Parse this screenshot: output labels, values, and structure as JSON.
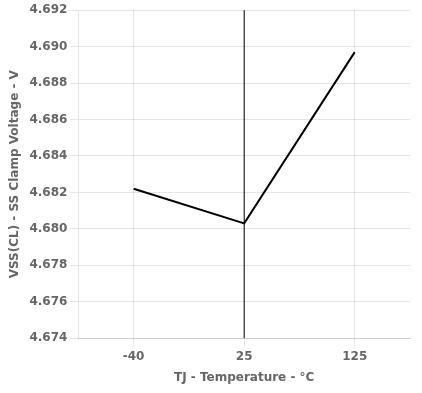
{
  "chart_data": {
    "type": "line",
    "categories": [
      "-40",
      "25",
      "125"
    ],
    "values": [
      4.6822,
      4.6803,
      4.6897
    ],
    "color": "#000000",
    "xlabel": "TJ - Temperature - °C",
    "ylabel": "VSS(CL) - SS Clamp Voltage - V",
    "ylim": [
      4.674,
      4.692
    ],
    "yticks": [
      4.674,
      4.676,
      4.678,
      {
        "value": 4.68,
        "label": "4.680"
      },
      4.682,
      4.684,
      4.686,
      4.688,
      {
        "value": 4.69,
        "label": "4.690"
      },
      4.692
    ],
    "grid": true,
    "vline": "25"
  }
}
